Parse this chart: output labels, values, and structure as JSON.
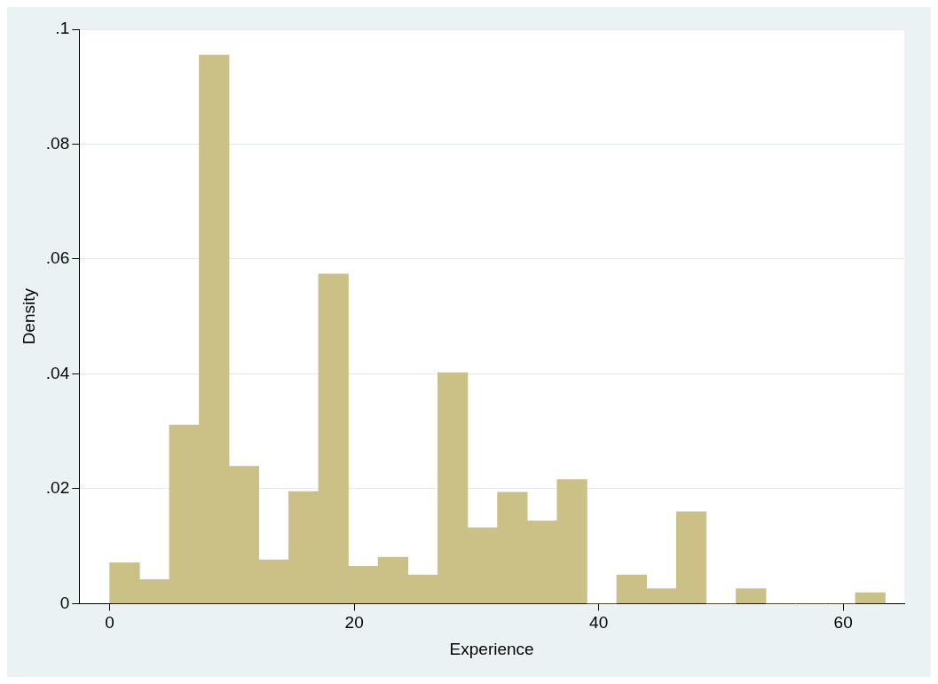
{
  "chart_data": {
    "type": "histogram",
    "xlabel": "Experience",
    "ylabel": "Density",
    "bins": [
      0,
      2.44,
      4.88,
      7.32,
      9.76,
      12.2,
      14.64,
      17.08,
      19.52,
      21.96,
      24.4,
      26.84,
      29.28,
      31.72,
      34.16,
      36.6,
      39.04,
      41.48,
      43.92,
      46.36,
      48.8,
      51.24,
      53.68,
      56.12,
      58.56,
      61,
      63.44
    ],
    "values": [
      0.0071,
      0.0042,
      0.0311,
      0.0955,
      0.0239,
      0.0076,
      0.0195,
      0.0574,
      0.0065,
      0.0081,
      0.005,
      0.0402,
      0.0132,
      0.0194,
      0.0144,
      0.0216,
      0,
      0.005,
      0.0026,
      0.016,
      0,
      0.0026,
      0,
      0,
      0,
      0.0019
    ],
    "color": "#cbc085",
    "xlim": [
      -2.5,
      65
    ],
    "xticks": [
      0,
      20,
      40,
      60
    ],
    "ylim": [
      0,
      0.1
    ],
    "yticks": [
      {
        "value": 0,
        "label": "0"
      },
      {
        "value": 0.02,
        "label": ".02"
      },
      {
        "value": 0.04,
        "label": ".04"
      },
      {
        "value": 0.06,
        "label": ".06"
      },
      {
        "value": 0.08,
        "label": ".08"
      },
      {
        "value": 0.1,
        "label": ".1"
      }
    ],
    "grid": "y"
  }
}
